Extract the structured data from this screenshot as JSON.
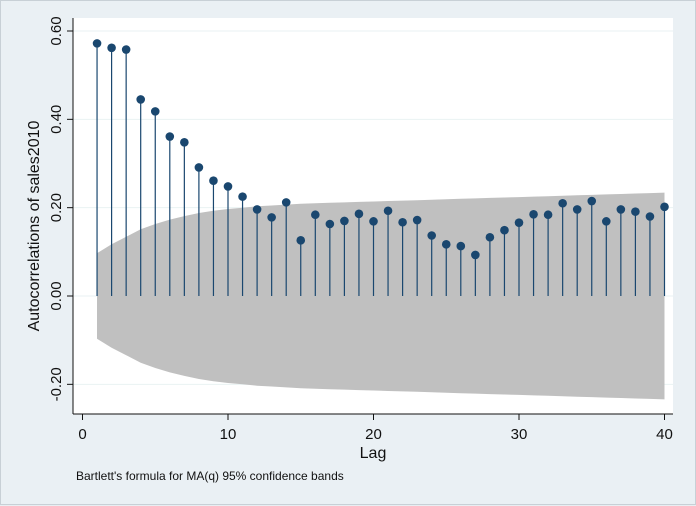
{
  "chart_data": {
    "type": "correlogram",
    "xlabel": "Lag",
    "ylabel": "Autocorrelations of sales2010",
    "note": "Bartlett's formula for MA(q) 95% confidence bands",
    "xlim": [
      0,
      40
    ],
    "ylim": [
      -0.27,
      0.625
    ],
    "x_ticks": [
      0,
      10,
      20,
      30,
      40
    ],
    "y_ticks": [
      -0.2,
      0,
      0.2,
      0.4,
      0.6
    ],
    "y_tick_labels": [
      "-0.20",
      "0.00",
      "0.20",
      "0.40",
      "0.60"
    ],
    "grid": "horizontal",
    "lags": [
      1,
      2,
      3,
      4,
      5,
      6,
      7,
      8,
      9,
      10,
      11,
      12,
      13,
      14,
      15,
      16,
      17,
      18,
      19,
      20,
      21,
      22,
      23,
      24,
      25,
      26,
      27,
      28,
      29,
      30,
      31,
      32,
      33,
      34,
      35,
      36,
      37,
      38,
      39,
      40
    ],
    "values": [
      0.572,
      0.562,
      0.558,
      0.445,
      0.418,
      0.361,
      0.348,
      0.291,
      0.261,
      0.248,
      0.225,
      0.196,
      0.178,
      0.212,
      0.126,
      0.184,
      0.163,
      0.17,
      0.186,
      0.169,
      0.193,
      0.167,
      0.172,
      0.137,
      0.117,
      0.113,
      0.093,
      0.133,
      0.149,
      0.166,
      0.185,
      0.184,
      0.21,
      0.196,
      0.215,
      0.169,
      0.196,
      0.191,
      0.18,
      0.202
    ],
    "band_upper": [
      0.097,
      0.117,
      0.134,
      0.151,
      0.163,
      0.173,
      0.181,
      0.188,
      0.193,
      0.197,
      0.2,
      0.203,
      0.205,
      0.207,
      0.209,
      0.21,
      0.211,
      0.212,
      0.213,
      0.214,
      0.215,
      0.216,
      0.217,
      0.218,
      0.219,
      0.22,
      0.221,
      0.222,
      0.223,
      0.224,
      0.225,
      0.226,
      0.227,
      0.228,
      0.229,
      0.23,
      0.231,
      0.232,
      0.233,
      0.234
    ],
    "colors": {
      "plot_bg": "#ffffff",
      "band": "#c0c0c0",
      "marker": "#1a476f",
      "stem": "#1a476f",
      "grid": "#eaf2f3"
    }
  }
}
